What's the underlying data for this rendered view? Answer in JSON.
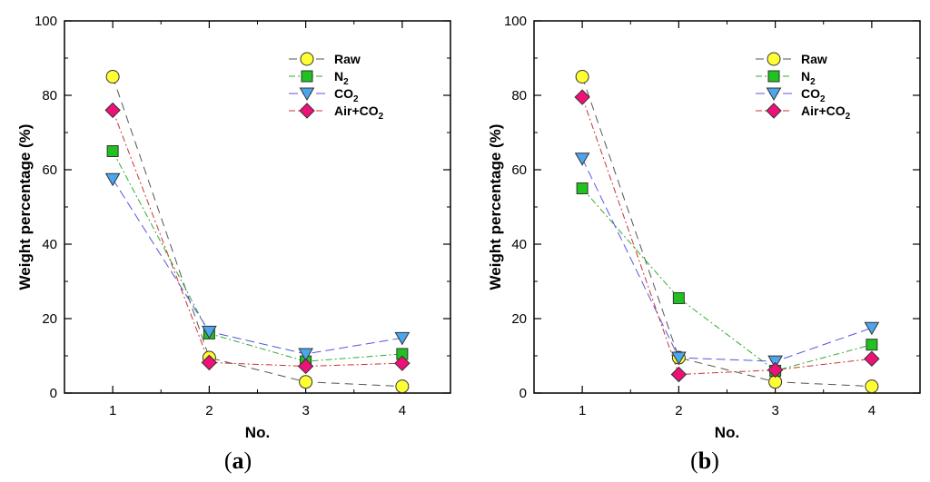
{
  "chart_data": [
    {
      "type": "line",
      "panel": "a",
      "caption": {
        "open": "(",
        "letter": "a",
        "close": ")"
      },
      "xlabel": "No.",
      "ylabel": "Weight percentage (%)",
      "x": [
        1,
        2,
        3,
        4
      ],
      "xlim": [
        0.5,
        4.5
      ],
      "ylim": [
        0,
        100
      ],
      "yticks": [
        0,
        20,
        40,
        60,
        80,
        100
      ],
      "legend_position": "top-right",
      "series": [
        {
          "name": "Raw",
          "base": "Raw",
          "sub": "",
          "values": [
            85,
            9.5,
            3,
            1.8
          ],
          "marker": "circle",
          "fill": "#ffff33",
          "line": "#555555",
          "dash": "9,6"
        },
        {
          "name": "N2",
          "base": "N",
          "sub": "2",
          "values": [
            65,
            16,
            8.5,
            10.5
          ],
          "marker": "square",
          "fill": "#1fc21f",
          "line": "#33aa33",
          "dash": "7,3,2,3"
        },
        {
          "name": "CO2",
          "base": "CO",
          "sub": "2",
          "values": [
            57.5,
            16.5,
            10.5,
            14.8
          ],
          "marker": "triangle-down",
          "fill": "#4ca6ee",
          "line": "#5555dd",
          "dash": "10,5"
        },
        {
          "name": "Air+CO2",
          "base": "Air+CO",
          "sub": "2",
          "values": [
            76,
            8.2,
            7.2,
            8
          ],
          "marker": "diamond",
          "fill": "#ee1177",
          "line": "#cc3333",
          "dash": "7,3,2,3"
        }
      ]
    },
    {
      "type": "line",
      "panel": "b",
      "caption": {
        "open": "(",
        "letter": "b",
        "close": ")"
      },
      "xlabel": "No.",
      "ylabel": "Weight percentage (%)",
      "x": [
        1,
        2,
        3,
        4
      ],
      "xlim": [
        0.5,
        4.5
      ],
      "ylim": [
        0,
        100
      ],
      "yticks": [
        0,
        20,
        40,
        60,
        80,
        100
      ],
      "legend_position": "top-right",
      "series": [
        {
          "name": "Raw",
          "base": "Raw",
          "sub": "",
          "values": [
            85,
            9.5,
            3,
            1.8
          ],
          "marker": "circle",
          "fill": "#ffff33",
          "line": "#555555",
          "dash": "9,6"
        },
        {
          "name": "N2",
          "base": "N",
          "sub": "2",
          "values": [
            55,
            25.5,
            6,
            13
          ],
          "marker": "square",
          "fill": "#1fc21f",
          "line": "#33aa33",
          "dash": "7,3,2,3"
        },
        {
          "name": "CO2",
          "base": "CO",
          "sub": "2",
          "values": [
            63,
            9.5,
            8.5,
            17.5
          ],
          "marker": "triangle-down",
          "fill": "#4ca6ee",
          "line": "#5555dd",
          "dash": "10,5"
        },
        {
          "name": "Air+CO2",
          "base": "Air+CO",
          "sub": "2",
          "values": [
            79.5,
            5,
            6.2,
            9.2
          ],
          "marker": "diamond",
          "fill": "#ee1177",
          "line": "#cc3333",
          "dash": "7,3,2,3"
        }
      ]
    }
  ]
}
